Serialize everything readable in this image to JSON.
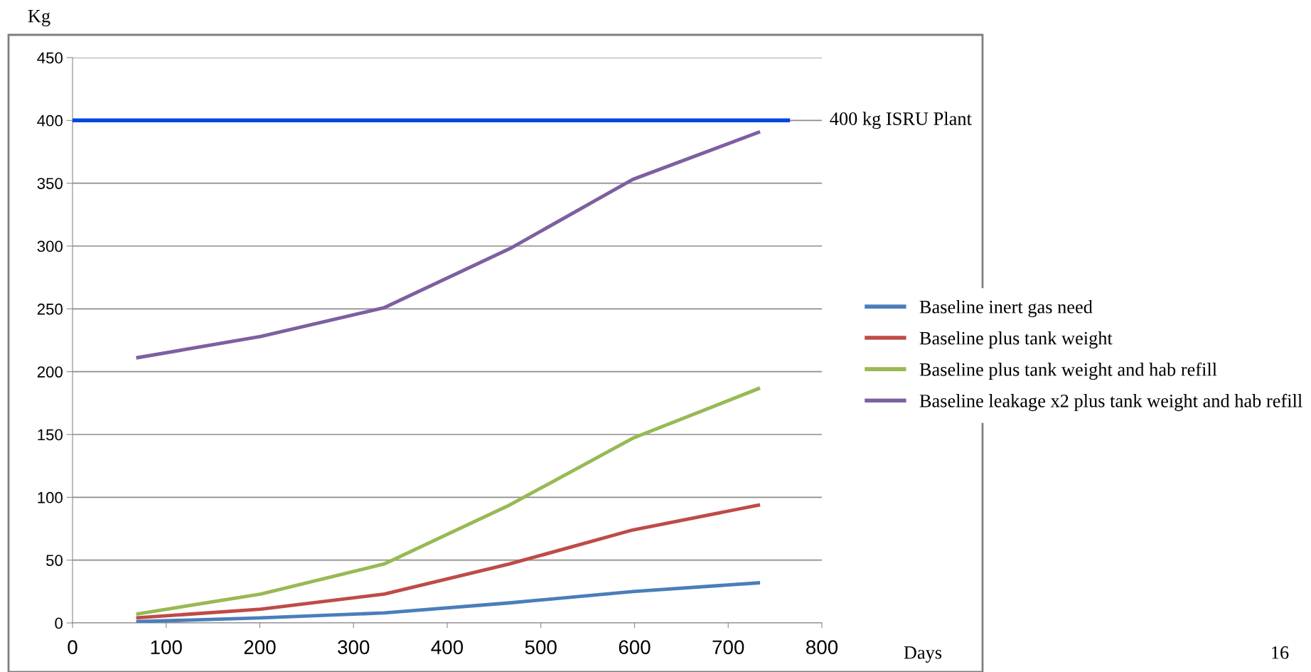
{
  "chart_data": {
    "type": "line",
    "xlabel": "Days",
    "ylabel": "Kg",
    "xlim": [
      0,
      800
    ],
    "xticks": [
      0,
      100,
      200,
      300,
      400,
      500,
      600,
      700,
      800
    ],
    "ylim": [
      0,
      450
    ],
    "yticks": [
      0,
      50,
      100,
      150,
      200,
      250,
      300,
      350,
      400,
      450
    ],
    "grid": "y",
    "legend": "right",
    "marker": "none",
    "line_style": "solid",
    "x": [
      68,
      201,
      333,
      467,
      598,
      734
    ],
    "series": [
      {
        "name": "Baseline inert gas need",
        "color": "#4a7ebb",
        "values": [
          1,
          4,
          8,
          16,
          25,
          32
        ]
      },
      {
        "name": "Baseline plus tank weight",
        "color": "#be4b48",
        "values": [
          4,
          11,
          23,
          47,
          74,
          94
        ]
      },
      {
        "name": "Baseline plus tank weight and hab refill",
        "color": "#98b954",
        "values": [
          7,
          23,
          47,
          94,
          147,
          187
        ]
      },
      {
        "name": "Baseline leakage x2 plus tank weight and hab refill",
        "color": "#7d60a0",
        "values": [
          211,
          228,
          251,
          298,
          353,
          391
        ]
      },
      {
        "name": "400 kg ISRU Plant",
        "color": "#0047e0",
        "x": [
          0,
          766
        ],
        "values": [
          400,
          400
        ]
      }
    ],
    "annotations": [
      "16"
    ]
  }
}
